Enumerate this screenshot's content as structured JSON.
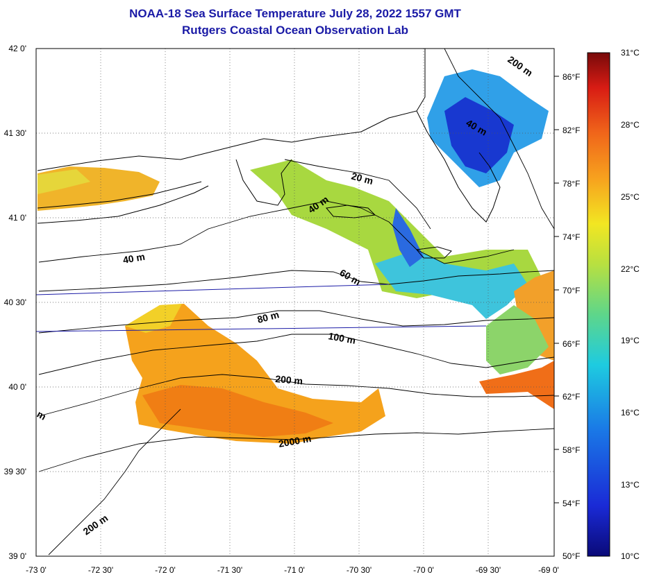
{
  "title": "NOAA-18 Sea Surface Temperature July 28, 2022 1557 GMT",
  "subtitle": "Rutgers Coastal Ocean Observation Lab",
  "lat_labels": [
    "42 0'",
    "41 30'",
    "41 0'",
    "40 30'",
    "40 0'",
    "39 30'",
    "39 0'"
  ],
  "lon_labels": [
    "-73 0'",
    "-72 30'",
    "-72 0'",
    "-71 30'",
    "-71 0'",
    "-70 30'",
    "-70 0'",
    "-69 30'",
    "-69 0'"
  ],
  "fahrenheit_labels": [
    "86°F",
    "82°F",
    "78°F",
    "74°F",
    "70°F",
    "66°F",
    "62°F",
    "58°F",
    "54°F",
    "50°F"
  ],
  "colorbar_labels": [
    "31°C",
    "28°C",
    "25°C",
    "22°C",
    "19°C",
    "16°C",
    "13°C",
    "10°C"
  ],
  "contour_labels": {
    "c200_ne": "200 m",
    "c40_ne": "40 m",
    "c20": "20 m",
    "c40_mid": "40 m",
    "c40_w": "40 m",
    "c60": "60 m",
    "c80": "80 m",
    "c100": "100 m",
    "c200": "200 m",
    "c2000": "2000 m",
    "c200_sw": "200 m",
    "c_edge": "m"
  },
  "colors": {
    "title": "#1a1aa6",
    "land_outline": "#000000",
    "warm": "#f09a18",
    "cold": "#1a3fd8",
    "transit_line": "#1a1aa6"
  },
  "map_extent": {
    "lon_min": -73.0,
    "lon_max": -69.0,
    "lat_min": 39.0,
    "lat_max": 42.0
  },
  "colorbar": {
    "c_min": 10,
    "c_max": 31,
    "f_min": 50,
    "f_max": 88
  }
}
